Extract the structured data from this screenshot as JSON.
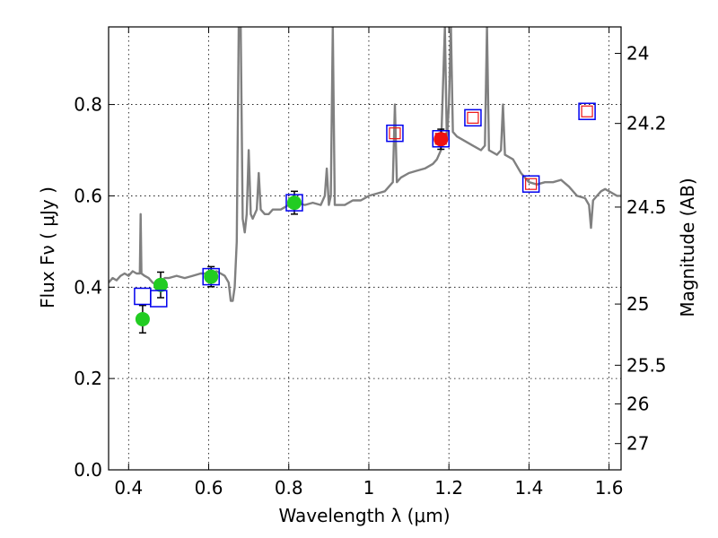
{
  "chart_data": {
    "type": "scatter",
    "xlabel": "Wavelength  λ (μm)",
    "ylabel": "Flux  Fν ( μJy )",
    "ylabel_right": "Magnitude (AB)",
    "xlim": [
      0.35,
      1.63
    ],
    "ylim": [
      0.0,
      0.97
    ],
    "grid": true,
    "x_ticks": [
      {
        "value": 0.4,
        "label": "0.4"
      },
      {
        "value": 0.6,
        "label": "0.6"
      },
      {
        "value": 0.8,
        "label": "0.8"
      },
      {
        "value": 1.0,
        "label": "1"
      },
      {
        "value": 1.2,
        "label": "1.2"
      },
      {
        "value": 1.4,
        "label": "1.4"
      },
      {
        "value": 1.6,
        "label": "1.6"
      }
    ],
    "y_ticks": [
      {
        "value": 0.0,
        "label": "0.0"
      },
      {
        "value": 0.2,
        "label": "0.2"
      },
      {
        "value": 0.4,
        "label": "0.4"
      },
      {
        "value": 0.6,
        "label": "0.6"
      },
      {
        "value": 0.8,
        "label": "0.8"
      }
    ],
    "right_ticks": [
      {
        "value": 24,
        "label": "24"
      },
      {
        "value": 24.2,
        "label": "24.2"
      },
      {
        "value": 24.5,
        "label": "24.5"
      },
      {
        "value": 25,
        "label": "25"
      },
      {
        "value": 25.5,
        "label": "25.5"
      },
      {
        "value": 26,
        "label": "26"
      },
      {
        "value": 27,
        "label": "27"
      }
    ],
    "colors": {
      "spectrum": "#808080",
      "observed_optical": "#22cc22",
      "observed_nir": "#ee1111",
      "model_box": "#0000ee",
      "model_box_inner": "#ee1111"
    },
    "spectrum": [
      [
        0.35,
        0.41
      ],
      [
        0.36,
        0.42
      ],
      [
        0.37,
        0.415
      ],
      [
        0.38,
        0.425
      ],
      [
        0.39,
        0.43
      ],
      [
        0.4,
        0.425
      ],
      [
        0.41,
        0.435
      ],
      [
        0.42,
        0.43
      ],
      [
        0.428,
        0.43
      ],
      [
        0.43,
        0.56
      ],
      [
        0.432,
        0.43
      ],
      [
        0.44,
        0.425
      ],
      [
        0.45,
        0.42
      ],
      [
        0.46,
        0.41
      ],
      [
        0.47,
        0.405
      ],
      [
        0.48,
        0.41
      ],
      [
        0.49,
        0.42
      ],
      [
        0.5,
        0.42
      ],
      [
        0.52,
        0.425
      ],
      [
        0.54,
        0.42
      ],
      [
        0.56,
        0.425
      ],
      [
        0.58,
        0.43
      ],
      [
        0.6,
        0.43
      ],
      [
        0.62,
        0.435
      ],
      [
        0.64,
        0.425
      ],
      [
        0.65,
        0.41
      ],
      [
        0.655,
        0.37
      ],
      [
        0.66,
        0.37
      ],
      [
        0.665,
        0.4
      ],
      [
        0.67,
        0.5
      ],
      [
        0.675,
        0.97
      ],
      [
        0.68,
        0.97
      ],
      [
        0.685,
        0.55
      ],
      [
        0.69,
        0.52
      ],
      [
        0.695,
        0.56
      ],
      [
        0.7,
        0.7
      ],
      [
        0.705,
        0.56
      ],
      [
        0.71,
        0.55
      ],
      [
        0.72,
        0.57
      ],
      [
        0.725,
        0.65
      ],
      [
        0.73,
        0.57
      ],
      [
        0.74,
        0.56
      ],
      [
        0.75,
        0.56
      ],
      [
        0.76,
        0.57
      ],
      [
        0.78,
        0.57
      ],
      [
        0.8,
        0.58
      ],
      [
        0.82,
        0.585
      ],
      [
        0.84,
        0.58
      ],
      [
        0.86,
        0.585
      ],
      [
        0.88,
        0.58
      ],
      [
        0.89,
        0.6
      ],
      [
        0.895,
        0.66
      ],
      [
        0.9,
        0.58
      ],
      [
        0.905,
        0.6
      ],
      [
        0.91,
        0.97
      ],
      [
        0.915,
        0.58
      ],
      [
        0.94,
        0.58
      ],
      [
        0.96,
        0.59
      ],
      [
        0.98,
        0.59
      ],
      [
        1.0,
        0.6
      ],
      [
        1.02,
        0.605
      ],
      [
        1.04,
        0.61
      ],
      [
        1.05,
        0.62
      ],
      [
        1.06,
        0.63
      ],
      [
        1.065,
        0.8
      ],
      [
        1.07,
        0.63
      ],
      [
        1.08,
        0.64
      ],
      [
        1.1,
        0.65
      ],
      [
        1.12,
        0.655
      ],
      [
        1.14,
        0.66
      ],
      [
        1.16,
        0.67
      ],
      [
        1.17,
        0.68
      ],
      [
        1.18,
        0.7
      ],
      [
        1.19,
        0.97
      ],
      [
        1.195,
        0.72
      ],
      [
        1.2,
        0.8
      ],
      [
        1.205,
        0.97
      ],
      [
        1.21,
        0.74
      ],
      [
        1.22,
        0.73
      ],
      [
        1.24,
        0.72
      ],
      [
        1.26,
        0.71
      ],
      [
        1.28,
        0.7
      ],
      [
        1.29,
        0.71
      ],
      [
        1.295,
        0.97
      ],
      [
        1.3,
        0.7
      ],
      [
        1.32,
        0.69
      ],
      [
        1.33,
        0.7
      ],
      [
        1.335,
        0.8
      ],
      [
        1.34,
        0.69
      ],
      [
        1.36,
        0.68
      ],
      [
        1.38,
        0.65
      ],
      [
        1.4,
        0.63
      ],
      [
        1.42,
        0.625
      ],
      [
        1.44,
        0.63
      ],
      [
        1.46,
        0.63
      ],
      [
        1.48,
        0.635
      ],
      [
        1.5,
        0.62
      ],
      [
        1.52,
        0.6
      ],
      [
        1.54,
        0.595
      ],
      [
        1.55,
        0.58
      ],
      [
        1.555,
        0.53
      ],
      [
        1.56,
        0.59
      ],
      [
        1.57,
        0.6
      ],
      [
        1.58,
        0.61
      ],
      [
        1.59,
        0.615
      ],
      [
        1.6,
        0.61
      ],
      [
        1.61,
        0.605
      ],
      [
        1.62,
        0.6
      ],
      [
        1.63,
        0.6
      ]
    ],
    "observed_optical": [
      {
        "x": 0.435,
        "y": 0.33,
        "err": 0.03
      },
      {
        "x": 0.48,
        "y": 0.405,
        "err": 0.028
      },
      {
        "x": 0.606,
        "y": 0.423,
        "err": 0.022
      },
      {
        "x": 0.814,
        "y": 0.585,
        "err": 0.025
      }
    ],
    "observed_nir": [
      {
        "x": 1.18,
        "y": 0.724,
        "err": 0.022
      }
    ],
    "model_boxes": [
      {
        "x": 0.435,
        "y": 0.38,
        "inner": false
      },
      {
        "x": 0.475,
        "y": 0.375,
        "inner": false
      },
      {
        "x": 0.606,
        "y": 0.423,
        "inner": false
      },
      {
        "x": 0.814,
        "y": 0.585,
        "inner": false
      },
      {
        "x": 1.065,
        "y": 0.737,
        "inner": true
      },
      {
        "x": 1.18,
        "y": 0.725,
        "inner": true
      },
      {
        "x": 1.26,
        "y": 0.771,
        "inner": true
      },
      {
        "x": 1.405,
        "y": 0.626,
        "inner": true
      },
      {
        "x": 1.545,
        "y": 0.785,
        "inner": true
      }
    ]
  }
}
